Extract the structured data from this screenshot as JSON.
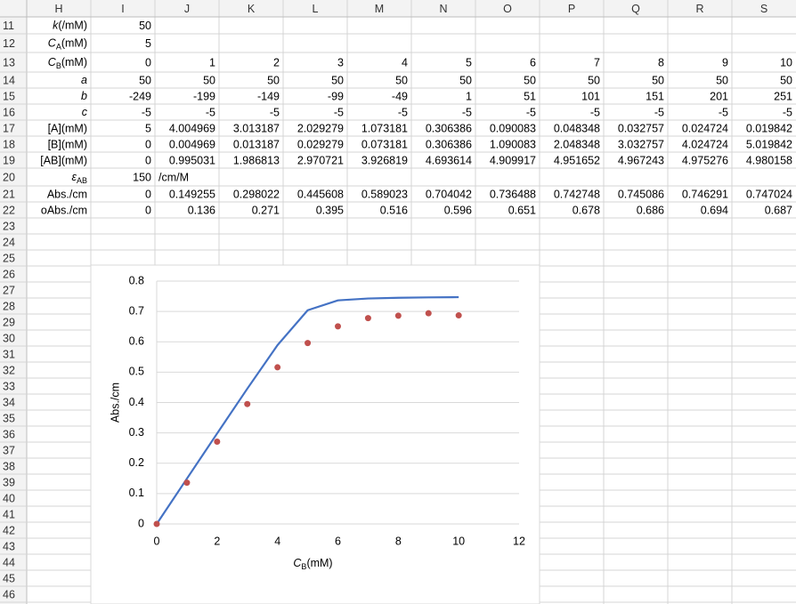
{
  "sheet": {
    "columns": [
      "H",
      "I",
      "J",
      "K",
      "L",
      "M",
      "N",
      "O",
      "P",
      "Q",
      "R",
      "S"
    ],
    "rows": [
      {
        "number": "11",
        "cells": {
          "H": [
            {
              "text": "k",
              "style": "italic"
            },
            {
              "text": "(/mM)"
            }
          ],
          "I": "50"
        },
        "colors": {
          "I": "#c00000"
        }
      },
      {
        "number": "12",
        "cells": {
          "H": [
            {
              "text": "C",
              "style": "italic"
            },
            {
              "text": "A",
              "style": "sub"
            },
            {
              "text": "(mM)"
            }
          ],
          "I": "5"
        }
      },
      {
        "number": "13",
        "cells": {
          "H": [
            {
              "text": "C",
              "style": "italic"
            },
            {
              "text": "B",
              "style": "sub"
            },
            {
              "text": "(mM)"
            }
          ],
          "I": "0",
          "J": "1",
          "K": "2",
          "L": "3",
          "M": "4",
          "N": "5",
          "O": "6",
          "P": "7",
          "Q": "8",
          "R": "9",
          "S": "10"
        }
      },
      {
        "number": "14",
        "cells": {
          "H": [
            {
              "text": "a",
              "style": "italic"
            }
          ],
          "I": "50",
          "J": "50",
          "K": "50",
          "L": "50",
          "M": "50",
          "N": "50",
          "O": "50",
          "P": "50",
          "Q": "50",
          "R": "50",
          "S": "50"
        }
      },
      {
        "number": "15",
        "cells": {
          "H": [
            {
              "text": "b",
              "style": "italic"
            }
          ],
          "I": "-249",
          "J": "-199",
          "K": "-149",
          "L": "-99",
          "M": "-49",
          "N": "1",
          "O": "51",
          "P": "101",
          "Q": "151",
          "R": "201",
          "S": "251"
        }
      },
      {
        "number": "16",
        "cells": {
          "H": [
            {
              "text": "c",
              "style": "italic"
            }
          ],
          "I": "-5",
          "J": "-5",
          "K": "-5",
          "L": "-5",
          "M": "-5",
          "N": "-5",
          "O": "-5",
          "P": "-5",
          "Q": "-5",
          "R": "-5",
          "S": "-5"
        }
      },
      {
        "number": "17",
        "cells": {
          "H": "[A](mM)",
          "I": "5",
          "J": "4.004969",
          "K": "3.013187",
          "L": "2.029279",
          "M": "1.073181",
          "N": "0.306386",
          "O": "0.090083",
          "P": "0.048348",
          "Q": "0.032757",
          "R": "0.024724",
          "S": "0.019842"
        }
      },
      {
        "number": "18",
        "cells": {
          "H": "[B](mM)",
          "I": "0",
          "J": "0.004969",
          "K": "0.013187",
          "L": "0.029279",
          "M": "0.073181",
          "N": "0.306386",
          "O": "1.090083",
          "P": "2.048348",
          "Q": "3.032757",
          "R": "4.024724",
          "S": "5.019842"
        }
      },
      {
        "number": "19",
        "cells": {
          "H": "[AB](mM)",
          "I": "0",
          "J": "0.995031",
          "K": "1.986813",
          "L": "2.970721",
          "M": "3.926819",
          "N": "4.693614",
          "O": "4.909917",
          "P": "4.951652",
          "Q": "4.967243",
          "R": "4.975276",
          "S": "4.980158"
        }
      },
      {
        "number": "20",
        "cells": {
          "H": [
            {
              "text": "ε",
              "style": "italic"
            },
            {
              "text": "AB",
              "style": "sub"
            }
          ],
          "I": "150",
          "J": "/cm/M"
        },
        "colors": {
          "I": "#c00000"
        },
        "align": {
          "J": "left"
        }
      },
      {
        "number": "21",
        "cells": {
          "H": "Abs./cm",
          "I": "0",
          "J": "0.149255",
          "K": "0.298022",
          "L": "0.445608",
          "M": "0.589023",
          "N": "0.704042",
          "O": "0.736488",
          "P": "0.742748",
          "Q": "0.745086",
          "R": "0.746291",
          "S": "0.747024"
        }
      },
      {
        "number": "22",
        "cells": {
          "H": "oAbs./cm",
          "I": "0",
          "J": "0.136",
          "K": "0.271",
          "L": "0.395",
          "M": "0.516",
          "N": "0.596",
          "O": "0.651",
          "P": "0.678",
          "Q": "0.686",
          "R": "0.694",
          "S": "0.687"
        }
      },
      {
        "number": "23"
      },
      {
        "number": "24"
      },
      {
        "number": "25"
      },
      {
        "number": "26"
      },
      {
        "number": "27"
      },
      {
        "number": "28"
      },
      {
        "number": "29"
      },
      {
        "number": "30"
      },
      {
        "number": "31"
      },
      {
        "number": "32"
      },
      {
        "number": "33"
      },
      {
        "number": "34"
      },
      {
        "number": "35"
      },
      {
        "number": "36"
      },
      {
        "number": "37"
      },
      {
        "number": "38"
      },
      {
        "number": "39"
      },
      {
        "number": "40"
      },
      {
        "number": "41"
      },
      {
        "number": "42"
      },
      {
        "number": "43"
      },
      {
        "number": "44"
      },
      {
        "number": "45"
      },
      {
        "number": "46"
      }
    ]
  },
  "chart_data": {
    "type": "scatter",
    "x_label": {
      "main": "C",
      "sub": "B",
      "rest": "(mM)"
    },
    "y_label": "Abs./cm",
    "x": [
      0,
      1,
      2,
      3,
      4,
      5,
      6,
      7,
      8,
      9,
      10
    ],
    "series": [
      {
        "mode": "line",
        "color": "#4472c4",
        "values": [
          0,
          0.149255,
          0.298022,
          0.445608,
          0.589023,
          0.704042,
          0.736488,
          0.742748,
          0.745086,
          0.746291,
          0.747024
        ]
      },
      {
        "mode": "markers",
        "color": "#c0504d",
        "values": [
          0,
          0.136,
          0.271,
          0.395,
          0.516,
          0.596,
          0.651,
          0.678,
          0.686,
          0.694,
          0.687
        ]
      }
    ],
    "xlim": [
      0,
      12
    ],
    "xticks": [
      0,
      2,
      4,
      6,
      8,
      10,
      12
    ],
    "ylim": [
      0,
      0.8
    ],
    "yticks": [
      0,
      0.1,
      0.2,
      0.3,
      0.4,
      0.5,
      0.6,
      0.7,
      0.8
    ],
    "grid": true
  }
}
